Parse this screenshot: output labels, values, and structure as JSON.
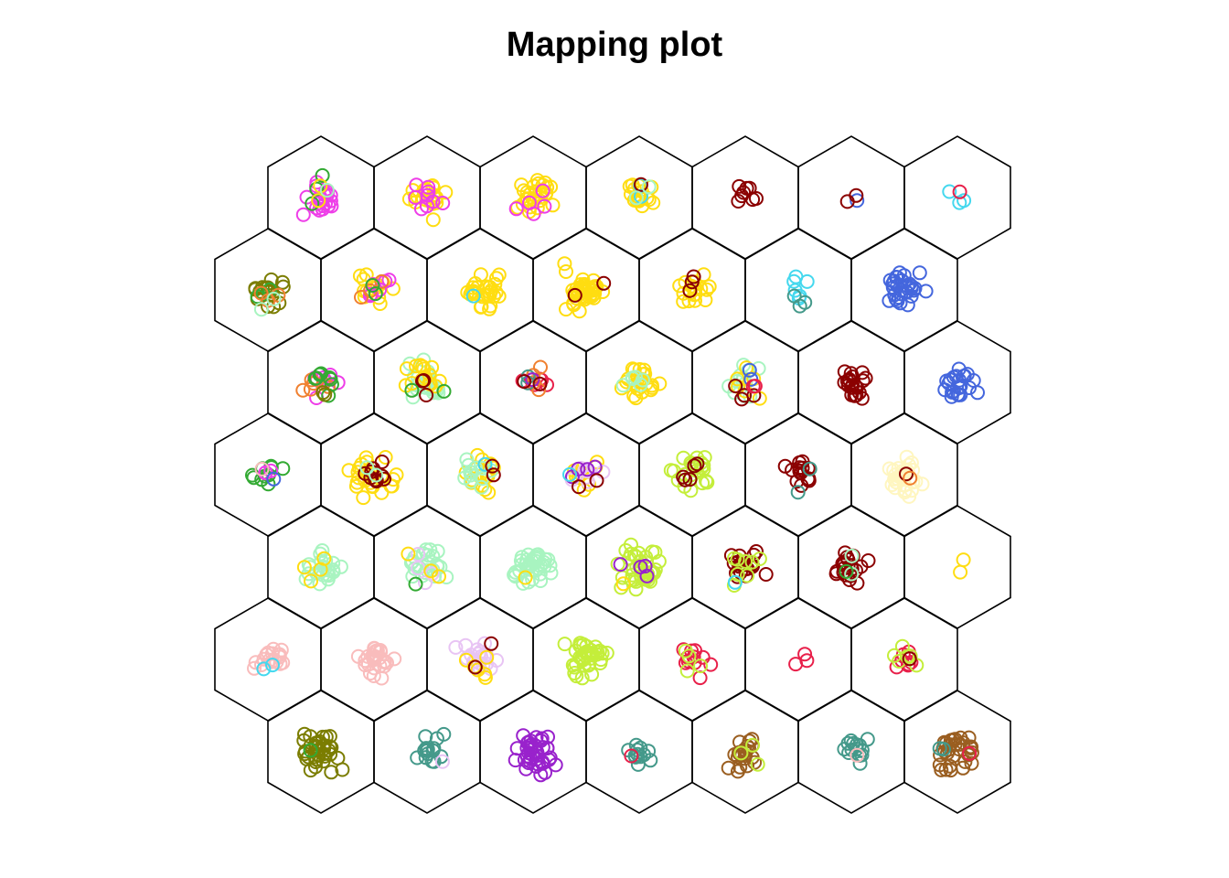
{
  "chart_data": {
    "type": "scatter",
    "title": "Mapping plot",
    "grid": {
      "shape": "hexagonal",
      "rows": 7,
      "cols": 7
    },
    "palette": {
      "magenta": "#ee3ee8",
      "gold": "#ffdd11",
      "cyan": "#44d8ee",
      "maroon": "#8b0000",
      "royalblue": "#4466dd",
      "crimson": "#e8204a",
      "olive": "#7b7d00",
      "green": "#33aa33",
      "orange": "#f08030",
      "mint": "#a8f4c0",
      "purple": "#9922cc",
      "lime": "#c4ee3a",
      "cream": "#fff6c0",
      "pink": "#f9bcbc",
      "lavender": "#e8c4f4",
      "teal": "#44998a",
      "brown": "#9a5e20"
    },
    "cells": [
      {
        "row": 0,
        "col": 0,
        "points": [
          {
            "color": "magenta",
            "count": 22
          },
          {
            "color": "green",
            "count": 3
          },
          {
            "color": "gold",
            "count": 2
          },
          {
            "color": "mint",
            "count": 1
          }
        ]
      },
      {
        "row": 0,
        "col": 1,
        "points": [
          {
            "color": "gold",
            "count": 20
          },
          {
            "color": "magenta",
            "count": 9
          }
        ]
      },
      {
        "row": 0,
        "col": 2,
        "points": [
          {
            "color": "gold",
            "count": 30
          },
          {
            "color": "magenta",
            "count": 5
          }
        ]
      },
      {
        "row": 0,
        "col": 3,
        "points": [
          {
            "color": "gold",
            "count": 16
          },
          {
            "color": "cyan",
            "count": 2
          },
          {
            "color": "maroon",
            "count": 1
          },
          {
            "color": "mint",
            "count": 2
          }
        ]
      },
      {
        "row": 0,
        "col": 4,
        "points": [
          {
            "color": "maroon",
            "count": 8
          }
        ]
      },
      {
        "row": 0,
        "col": 5,
        "points": [
          {
            "color": "royalblue",
            "count": 1
          },
          {
            "color": "maroon",
            "count": 2
          }
        ]
      },
      {
        "row": 0,
        "col": 6,
        "points": [
          {
            "color": "cyan",
            "count": 3
          },
          {
            "color": "crimson",
            "count": 1
          }
        ]
      },
      {
        "row": 1,
        "col": 0,
        "points": [
          {
            "color": "olive",
            "count": 16
          },
          {
            "color": "green",
            "count": 3
          },
          {
            "color": "orange",
            "count": 3
          },
          {
            "color": "mint",
            "count": 2
          }
        ]
      },
      {
        "row": 1,
        "col": 1,
        "points": [
          {
            "color": "gold",
            "count": 12
          },
          {
            "color": "magenta",
            "count": 6
          },
          {
            "color": "orange",
            "count": 3
          },
          {
            "color": "green",
            "count": 2
          }
        ]
      },
      {
        "row": 1,
        "col": 2,
        "points": [
          {
            "color": "gold",
            "count": 30
          },
          {
            "color": "cyan",
            "count": 1
          }
        ]
      },
      {
        "row": 1,
        "col": 3,
        "points": [
          {
            "color": "gold",
            "count": 45
          },
          {
            "color": "maroon",
            "count": 2
          }
        ]
      },
      {
        "row": 1,
        "col": 4,
        "points": [
          {
            "color": "gold",
            "count": 18
          },
          {
            "color": "maroon",
            "count": 3
          }
        ]
      },
      {
        "row": 1,
        "col": 5,
        "points": [
          {
            "color": "cyan",
            "count": 6
          },
          {
            "color": "teal",
            "count": 3
          }
        ]
      },
      {
        "row": 1,
        "col": 6,
        "points": [
          {
            "color": "royalblue",
            "count": 30
          }
        ]
      },
      {
        "row": 2,
        "col": 0,
        "points": [
          {
            "color": "magenta",
            "count": 8
          },
          {
            "color": "orange",
            "count": 6
          },
          {
            "color": "green",
            "count": 8
          },
          {
            "color": "olive",
            "count": 2
          }
        ]
      },
      {
        "row": 2,
        "col": 1,
        "points": [
          {
            "color": "mint",
            "count": 22
          },
          {
            "color": "gold",
            "count": 16
          },
          {
            "color": "maroon",
            "count": 3
          },
          {
            "color": "green",
            "count": 2
          }
        ]
      },
      {
        "row": 2,
        "col": 2,
        "points": [
          {
            "color": "crimson",
            "count": 6
          },
          {
            "color": "orange",
            "count": 4
          },
          {
            "color": "teal",
            "count": 2
          },
          {
            "color": "purple",
            "count": 1
          },
          {
            "color": "maroon",
            "count": 2
          }
        ]
      },
      {
        "row": 2,
        "col": 3,
        "points": [
          {
            "color": "gold",
            "count": 24
          },
          {
            "color": "mint",
            "count": 6
          }
        ]
      },
      {
        "row": 2,
        "col": 4,
        "points": [
          {
            "color": "mint",
            "count": 12
          },
          {
            "color": "gold",
            "count": 6
          },
          {
            "color": "maroon",
            "count": 4
          },
          {
            "color": "royalblue",
            "count": 2
          },
          {
            "color": "crimson",
            "count": 2
          }
        ]
      },
      {
        "row": 2,
        "col": 5,
        "points": [
          {
            "color": "maroon",
            "count": 20
          }
        ]
      },
      {
        "row": 2,
        "col": 6,
        "points": [
          {
            "color": "royalblue",
            "count": 22
          }
        ]
      },
      {
        "row": 3,
        "col": 0,
        "points": [
          {
            "color": "green",
            "count": 10
          },
          {
            "color": "magenta",
            "count": 3
          },
          {
            "color": "royalblue",
            "count": 1
          },
          {
            "color": "pink",
            "count": 1
          }
        ]
      },
      {
        "row": 3,
        "col": 1,
        "points": [
          {
            "color": "gold",
            "count": 26
          },
          {
            "color": "maroon",
            "count": 10
          },
          {
            "color": "mint",
            "count": 2
          }
        ]
      },
      {
        "row": 3,
        "col": 2,
        "points": [
          {
            "color": "gold",
            "count": 18
          },
          {
            "color": "mint",
            "count": 12
          },
          {
            "color": "cyan",
            "count": 1
          },
          {
            "color": "maroon",
            "count": 2
          }
        ]
      },
      {
        "row": 3,
        "col": 3,
        "points": [
          {
            "color": "gold",
            "count": 10
          },
          {
            "color": "lavender",
            "count": 8
          },
          {
            "color": "purple",
            "count": 4
          },
          {
            "color": "maroon",
            "count": 2
          },
          {
            "color": "cyan",
            "count": 1
          }
        ]
      },
      {
        "row": 3,
        "col": 4,
        "points": [
          {
            "color": "lime",
            "count": 22
          },
          {
            "color": "maroon",
            "count": 5
          }
        ]
      },
      {
        "row": 3,
        "col": 5,
        "points": [
          {
            "color": "maroon",
            "count": 14
          },
          {
            "color": "teal",
            "count": 2
          }
        ]
      },
      {
        "row": 3,
        "col": 6,
        "points": [
          {
            "color": "cream",
            "count": 32
          },
          {
            "color": "maroon",
            "count": 1
          },
          {
            "color": "orange",
            "count": 1
          }
        ]
      },
      {
        "row": 4,
        "col": 0,
        "points": [
          {
            "color": "mint",
            "count": 22
          },
          {
            "color": "gold",
            "count": 4
          }
        ]
      },
      {
        "row": 4,
        "col": 1,
        "points": [
          {
            "color": "mint",
            "count": 22
          },
          {
            "color": "lavender",
            "count": 4
          },
          {
            "color": "gold",
            "count": 3
          },
          {
            "color": "green",
            "count": 1
          }
        ]
      },
      {
        "row": 4,
        "col": 2,
        "points": [
          {
            "color": "mint",
            "count": 38
          },
          {
            "color": "gold",
            "count": 1
          }
        ]
      },
      {
        "row": 4,
        "col": 3,
        "points": [
          {
            "color": "lime",
            "count": 40
          },
          {
            "color": "purple",
            "count": 4
          },
          {
            "color": "gold",
            "count": 1
          }
        ]
      },
      {
        "row": 4,
        "col": 4,
        "points": [
          {
            "color": "maroon",
            "count": 20
          },
          {
            "color": "lime",
            "count": 8
          },
          {
            "color": "cyan",
            "count": 1
          }
        ]
      },
      {
        "row": 4,
        "col": 5,
        "points": [
          {
            "color": "maroon",
            "count": 20
          },
          {
            "color": "mint",
            "count": 2
          },
          {
            "color": "green",
            "count": 1
          }
        ]
      },
      {
        "row": 4,
        "col": 6,
        "points": [
          {
            "color": "gold",
            "count": 2
          }
        ]
      },
      {
        "row": 5,
        "col": 0,
        "points": [
          {
            "color": "pink",
            "count": 20
          },
          {
            "color": "cyan",
            "count": 2
          }
        ]
      },
      {
        "row": 5,
        "col": 1,
        "points": [
          {
            "color": "pink",
            "count": 28
          }
        ]
      },
      {
        "row": 5,
        "col": 2,
        "points": [
          {
            "color": "lavender",
            "count": 20
          },
          {
            "color": "gold",
            "count": 6
          },
          {
            "color": "maroon",
            "count": 2
          }
        ]
      },
      {
        "row": 5,
        "col": 3,
        "points": [
          {
            "color": "lime",
            "count": 36
          }
        ]
      },
      {
        "row": 5,
        "col": 4,
        "points": [
          {
            "color": "crimson",
            "count": 12
          },
          {
            "color": "lime",
            "count": 4
          }
        ]
      },
      {
        "row": 5,
        "col": 5,
        "points": [
          {
            "color": "crimson",
            "count": 3
          }
        ]
      },
      {
        "row": 5,
        "col": 6,
        "points": [
          {
            "color": "crimson",
            "count": 8
          },
          {
            "color": "lime",
            "count": 6
          },
          {
            "color": "maroon",
            "count": 1
          }
        ]
      },
      {
        "row": 6,
        "col": 0,
        "points": [
          {
            "color": "olive",
            "count": 36
          },
          {
            "color": "green",
            "count": 1
          }
        ]
      },
      {
        "row": 6,
        "col": 1,
        "points": [
          {
            "color": "teal",
            "count": 16
          },
          {
            "color": "lavender",
            "count": 1
          }
        ]
      },
      {
        "row": 6,
        "col": 2,
        "points": [
          {
            "color": "purple",
            "count": 40
          }
        ]
      },
      {
        "row": 6,
        "col": 3,
        "points": [
          {
            "color": "teal",
            "count": 12
          },
          {
            "color": "crimson",
            "count": 1
          }
        ]
      },
      {
        "row": 6,
        "col": 4,
        "points": [
          {
            "color": "brown",
            "count": 22
          },
          {
            "color": "lime",
            "count": 3
          }
        ]
      },
      {
        "row": 6,
        "col": 5,
        "points": [
          {
            "color": "teal",
            "count": 14
          },
          {
            "color": "pink",
            "count": 1
          }
        ]
      },
      {
        "row": 6,
        "col": 6,
        "points": [
          {
            "color": "brown",
            "count": 32
          },
          {
            "color": "teal",
            "count": 2
          },
          {
            "color": "crimson",
            "count": 1
          }
        ]
      }
    ]
  }
}
